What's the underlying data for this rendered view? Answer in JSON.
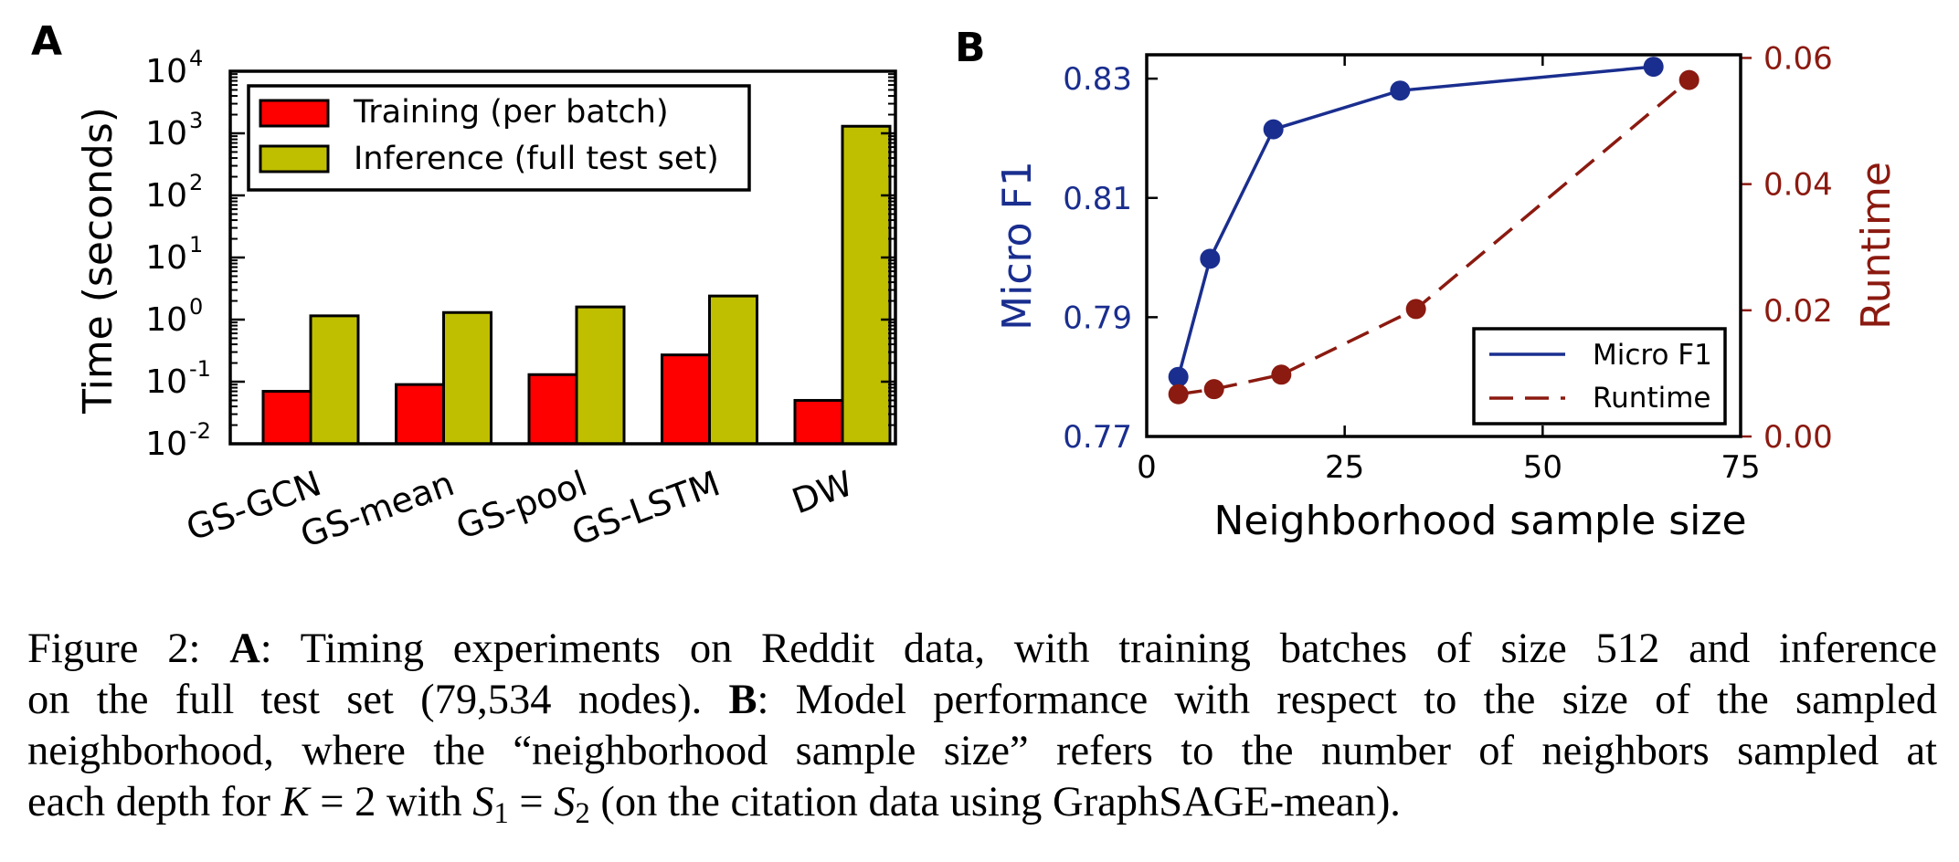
{
  "chart_data": [
    {
      "panel_label": "A",
      "type": "bar",
      "scale": "log",
      "ylabel": "Time (seconds)",
      "ylim": [
        0.01,
        10000
      ],
      "yticks": [
        {
          "value": 0.01,
          "base": "10",
          "exp": "-2"
        },
        {
          "value": 0.1,
          "base": "10",
          "exp": "-1"
        },
        {
          "value": 1,
          "base": "10",
          "exp": "0"
        },
        {
          "value": 10,
          "base": "10",
          "exp": "1"
        },
        {
          "value": 100,
          "base": "10",
          "exp": "2"
        },
        {
          "value": 1000,
          "base": "10",
          "exp": "3"
        },
        {
          "value": 10000,
          "base": "10",
          "exp": "4"
        }
      ],
      "categories": [
        "GS-GCN",
        "GS-mean",
        "GS-pool",
        "GS-LSTM",
        "DW"
      ],
      "series": [
        {
          "name": "Training (per batch)",
          "color": "#ff0000",
          "values": [
            0.07,
            0.09,
            0.13,
            0.27,
            0.05
          ]
        },
        {
          "name": "Inference (full test set)",
          "color": "#bfbf00",
          "values": [
            1.15,
            1.3,
            1.6,
            2.4,
            1300
          ]
        }
      ],
      "legend_position": "top-left"
    },
    {
      "panel_label": "B",
      "type": "line",
      "xlabel": "Neighborhood sample size",
      "xlim": [
        0,
        75
      ],
      "xticks": [
        "0",
        "25",
        "50",
        "75"
      ],
      "left_axis": {
        "label": "Micro F1",
        "color": "#1a2e8f",
        "ylim": [
          0.77,
          0.834
        ],
        "ticks": [
          "0.77",
          "0.79",
          "0.81",
          "0.83"
        ]
      },
      "right_axis": {
        "label": "Runtime",
        "color": "#8b1a10",
        "ylim": [
          0.0,
          0.0605
        ],
        "ticks": [
          "0.00",
          "0.02",
          "0.04",
          "0.06"
        ]
      },
      "series": [
        {
          "name": "Micro F1",
          "axis": "left",
          "style": "solid",
          "color": "#1a2e8f",
          "x": [
            4,
            8,
            16,
            32,
            64
          ],
          "y": [
            0.78,
            0.7998,
            0.8215,
            0.828,
            0.832
          ]
        },
        {
          "name": "Runtime",
          "axis": "right",
          "style": "dashed",
          "color": "#8b1a10",
          "x": [
            4,
            8.5,
            17,
            34,
            68.5
          ],
          "y": [
            0.0067,
            0.0075,
            0.0098,
            0.0202,
            0.0565
          ]
        }
      ],
      "legend_position": "bottom-right"
    }
  ],
  "caption": {
    "line1_label": "Figure 2:",
    "line1_a": "A",
    "line1_text": ": Timing experiments on Reddit data, with training batches of size 512 and inference",
    "line2_text": "on the full test set (79,534 nodes).",
    "line2_b": "B",
    "line2_rest": ": Model performance with respect to the size of the sampled",
    "line3_text": "neighborhood, where the “neighborhood sample size” refers to the number of neighbors sampled at",
    "line4_a": "each depth for",
    "line4_k": "K",
    "line4_eq1": " = 2 with ",
    "line4_s": "S",
    "line4_s1": "1",
    "line4_eq2": " = ",
    "line4_s2": "2",
    "line4_rest": " (on the citation data using GraphSAGE-mean)."
  }
}
